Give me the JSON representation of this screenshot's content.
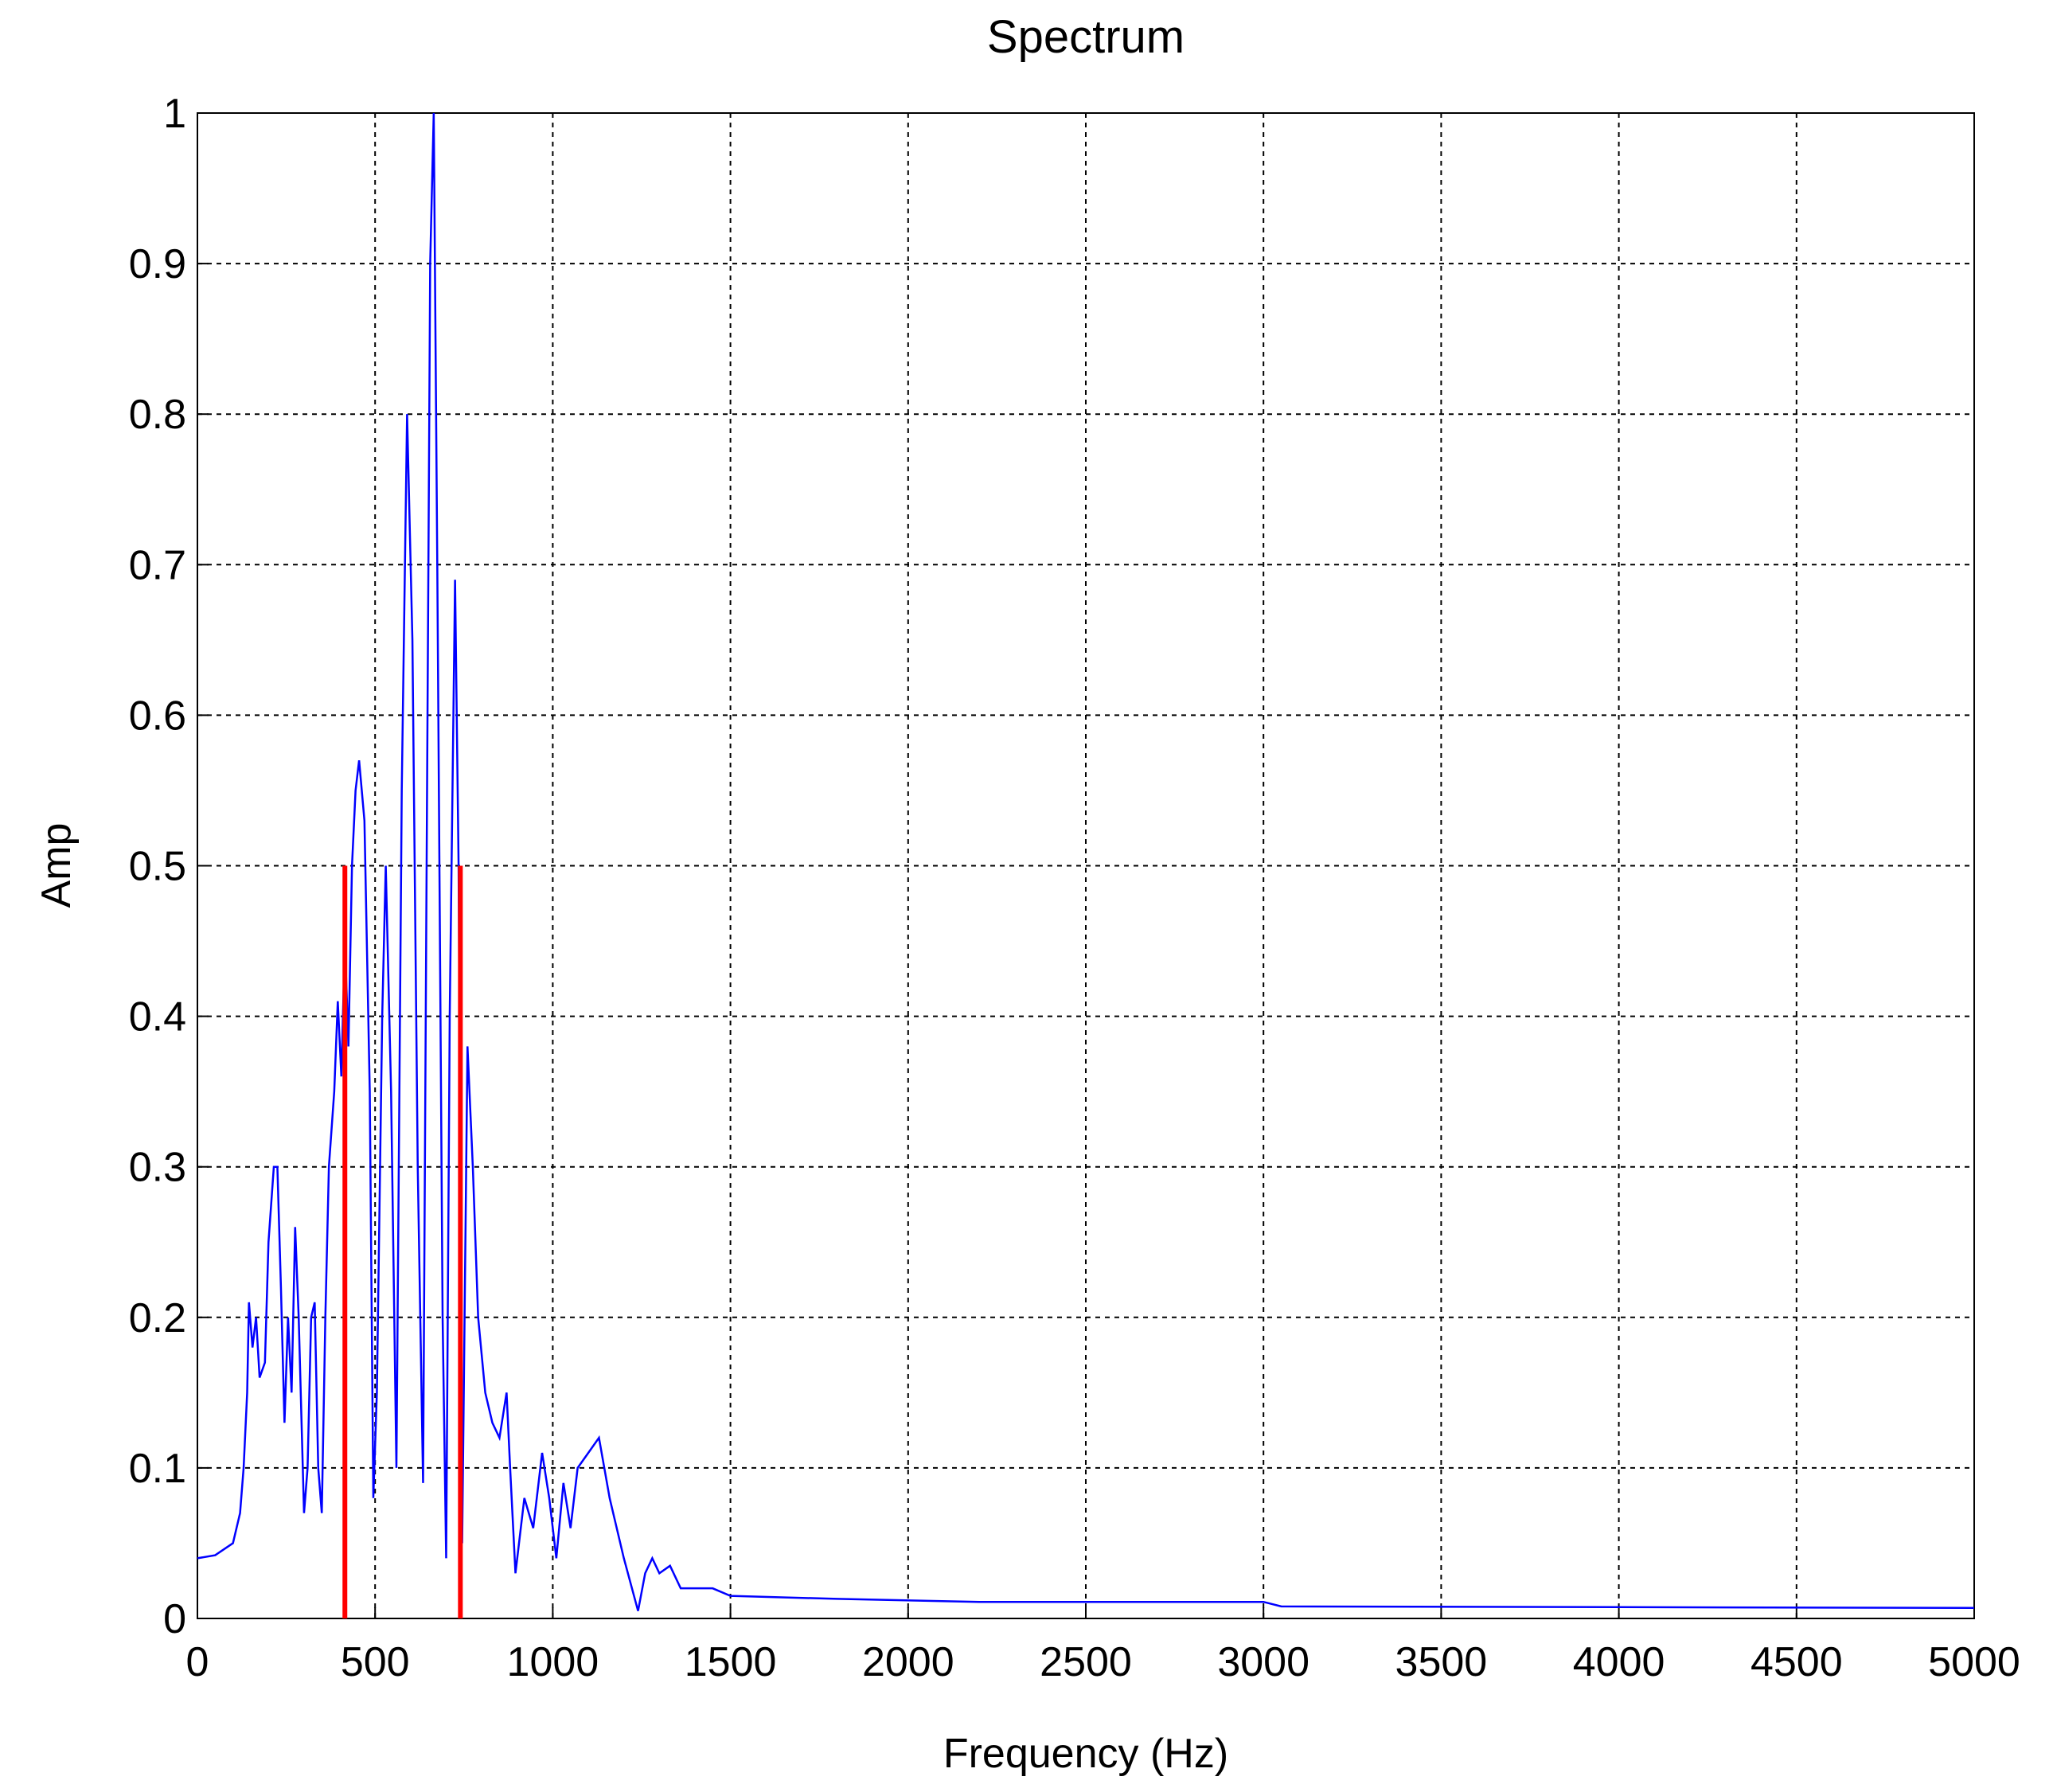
{
  "chart_data": {
    "type": "line",
    "title": "Spectrum",
    "x_label": "Frequency (Hz)",
    "y_label": "Amp",
    "xlim": [
      0,
      5000
    ],
    "ylim": [
      0,
      1
    ],
    "xticks": [
      0,
      500,
      1000,
      1500,
      2000,
      2500,
      3000,
      3500,
      4000,
      4500,
      5000
    ],
    "yticks": [
      0,
      0.1,
      0.2,
      0.3,
      0.4,
      0.5,
      0.6,
      0.7,
      0.8,
      0.9,
      1
    ],
    "grid": true,
    "x": [
      0,
      50,
      100,
      120,
      130,
      140,
      145,
      155,
      165,
      175,
      190,
      200,
      215,
      225,
      235,
      245,
      255,
      265,
      275,
      285,
      300,
      310,
      320,
      330,
      340,
      350,
      360,
      370,
      385,
      395,
      405,
      415,
      425,
      435,
      445,
      455,
      470,
      485,
      495,
      505,
      520,
      530,
      545,
      560,
      575,
      590,
      605,
      620,
      635,
      645,
      655,
      665,
      675,
      690,
      700,
      710,
      725,
      735,
      745,
      760,
      775,
      790,
      810,
      830,
      850,
      870,
      880,
      895,
      920,
      945,
      970,
      990,
      1010,
      1030,
      1050,
      1070,
      1100,
      1130,
      1160,
      1200,
      1240,
      1260,
      1280,
      1300,
      1330,
      1360,
      1450,
      1500,
      1800,
      2200,
      3000,
      3050,
      5000
    ],
    "series": [
      {
        "color": "#0000ff",
        "values": [
          0.04,
          0.042,
          0.05,
          0.07,
          0.1,
          0.15,
          0.21,
          0.18,
          0.2,
          0.16,
          0.17,
          0.25,
          0.3,
          0.3,
          0.22,
          0.13,
          0.2,
          0.15,
          0.26,
          0.2,
          0.07,
          0.1,
          0.2,
          0.21,
          0.1,
          0.07,
          0.2,
          0.3,
          0.35,
          0.41,
          0.36,
          0.45,
          0.38,
          0.5,
          0.55,
          0.57,
          0.53,
          0.35,
          0.08,
          0.15,
          0.4,
          0.5,
          0.35,
          0.1,
          0.55,
          0.8,
          0.65,
          0.3,
          0.09,
          0.5,
          0.9,
          1.0,
          0.7,
          0.2,
          0.04,
          0.4,
          0.69,
          0.5,
          0.05,
          0.38,
          0.3,
          0.2,
          0.15,
          0.13,
          0.12,
          0.15,
          0.1,
          0.03,
          0.08,
          0.06,
          0.11,
          0.08,
          0.04,
          0.09,
          0.06,
          0.1,
          0.11,
          0.12,
          0.08,
          0.04,
          0.005,
          0.03,
          0.04,
          0.03,
          0.035,
          0.02,
          0.02,
          0.015,
          0.013,
          0.011,
          0.011,
          0.008,
          0.007
        ]
      }
    ],
    "vlines": {
      "color": "#ff0000",
      "x": [
        415,
        740
      ],
      "values": [
        0.5,
        0.5
      ]
    }
  }
}
